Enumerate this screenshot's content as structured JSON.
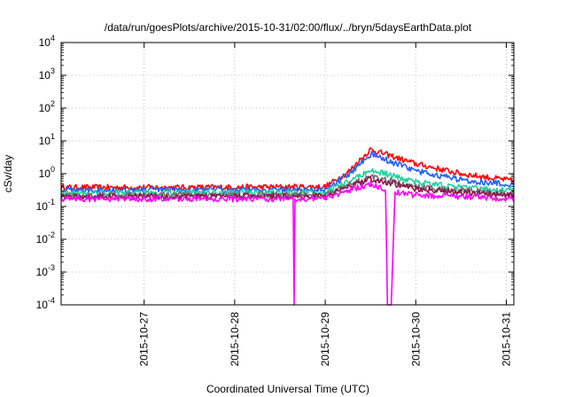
{
  "chart_data": {
    "type": "line",
    "title": "/data/run/goesPlots/archive/2015-10-31/02:00/flux/../bryn/5daysEarthData.plot",
    "xlabel": "Coordinated Universal Time (UTC)",
    "ylabel": "cSv/day",
    "yscale": "log",
    "ylim": [
      0.0001,
      10000
    ],
    "xlim": [
      "2015-10-26T02:00",
      "2015-10-31T02:00"
    ],
    "grid": true,
    "legend": "none",
    "x_ticks": [
      "2015-10-27",
      "2015-10-28",
      "2015-10-29",
      "2015-10-30",
      "2015-10-31"
    ],
    "y_ticks": [
      {
        "value": 0.0001,
        "base": "10",
        "exp": "-4"
      },
      {
        "value": 0.001,
        "base": "10",
        "exp": "-3"
      },
      {
        "value": 0.01,
        "base": "10",
        "exp": "-2"
      },
      {
        "value": 0.1,
        "base": "10",
        "exp": "-1"
      },
      {
        "value": 1,
        "base": "10",
        "exp": "0"
      },
      {
        "value": 10,
        "base": "10",
        "exp": "1"
      },
      {
        "value": 100,
        "base": "10",
        "exp": "2"
      },
      {
        "value": 1000,
        "base": "10",
        "exp": "3"
      },
      {
        "value": 10000,
        "base": "10",
        "exp": "4"
      }
    ],
    "series": [
      {
        "color": "#ff0000",
        "x": [
          "2015-10-26T02:00",
          "2015-10-27T12:00",
          "2015-10-29T00:00",
          "2015-10-29T06:00",
          "2015-10-29T12:00",
          "2015-10-30T00:00",
          "2015-10-30T12:00",
          "2015-10-31T02:00"
        ],
        "y": [
          0.38,
          0.38,
          0.4,
          1.1,
          5.5,
          2.0,
          1.0,
          0.6
        ]
      },
      {
        "color": "#1e64ff",
        "x": [
          "2015-10-26T02:00",
          "2015-10-27T12:00",
          "2015-10-29T00:00",
          "2015-10-29T06:00",
          "2015-10-29T12:00",
          "2015-10-30T00:00",
          "2015-10-30T12:00",
          "2015-10-31T02:00"
        ],
        "y": [
          0.32,
          0.32,
          0.33,
          0.9,
          4.0,
          1.2,
          0.65,
          0.45
        ]
      },
      {
        "color": "#20d0a0",
        "x": [
          "2015-10-26T02:00",
          "2015-10-27T12:00",
          "2015-10-29T00:00",
          "2015-10-29T06:00",
          "2015-10-29T12:00",
          "2015-10-30T00:00",
          "2015-10-30T12:00",
          "2015-10-31T02:00"
        ],
        "y": [
          0.26,
          0.26,
          0.27,
          0.55,
          1.3,
          0.55,
          0.38,
          0.3
        ]
      },
      {
        "color": "#707070",
        "x": [
          "2015-10-26T02:00",
          "2015-10-27T12:00",
          "2015-10-29T00:00",
          "2015-10-29T06:00",
          "2015-10-29T12:00",
          "2015-10-30T00:00",
          "2015-10-30T12:00",
          "2015-10-31T02:00"
        ],
        "y": [
          0.22,
          0.22,
          0.23,
          0.45,
          0.8,
          0.4,
          0.3,
          0.25
        ]
      },
      {
        "color": "#8b1a4a",
        "x": [
          "2015-10-26T02:00",
          "2015-10-27T12:00",
          "2015-10-29T00:00",
          "2015-10-29T06:00",
          "2015-10-29T12:00",
          "2015-10-30T00:00",
          "2015-10-30T12:00",
          "2015-10-31T02:00"
        ],
        "y": [
          0.2,
          0.2,
          0.21,
          0.4,
          0.7,
          0.35,
          0.27,
          0.22
        ]
      },
      {
        "color": "#ff00ff",
        "x": [
          "2015-10-26T02:00",
          "2015-10-27T12:00",
          "2015-10-28T15:30",
          "2015-10-28T15:45",
          "2015-10-28T16:00",
          "2015-10-29T00:00",
          "2015-10-29T06:00",
          "2015-10-29T12:00",
          "2015-10-29T16:00",
          "2015-10-29T16:30",
          "2015-10-29T17:30",
          "2015-10-29T18:30",
          "2015-10-30T00:00",
          "2015-10-30T12:00",
          "2015-10-31T02:00"
        ],
        "y": [
          0.17,
          0.17,
          0.17,
          0.0001,
          0.17,
          0.18,
          0.3,
          0.5,
          0.3,
          0.0001,
          0.0001,
          0.28,
          0.22,
          0.2,
          0.17
        ]
      }
    ]
  }
}
